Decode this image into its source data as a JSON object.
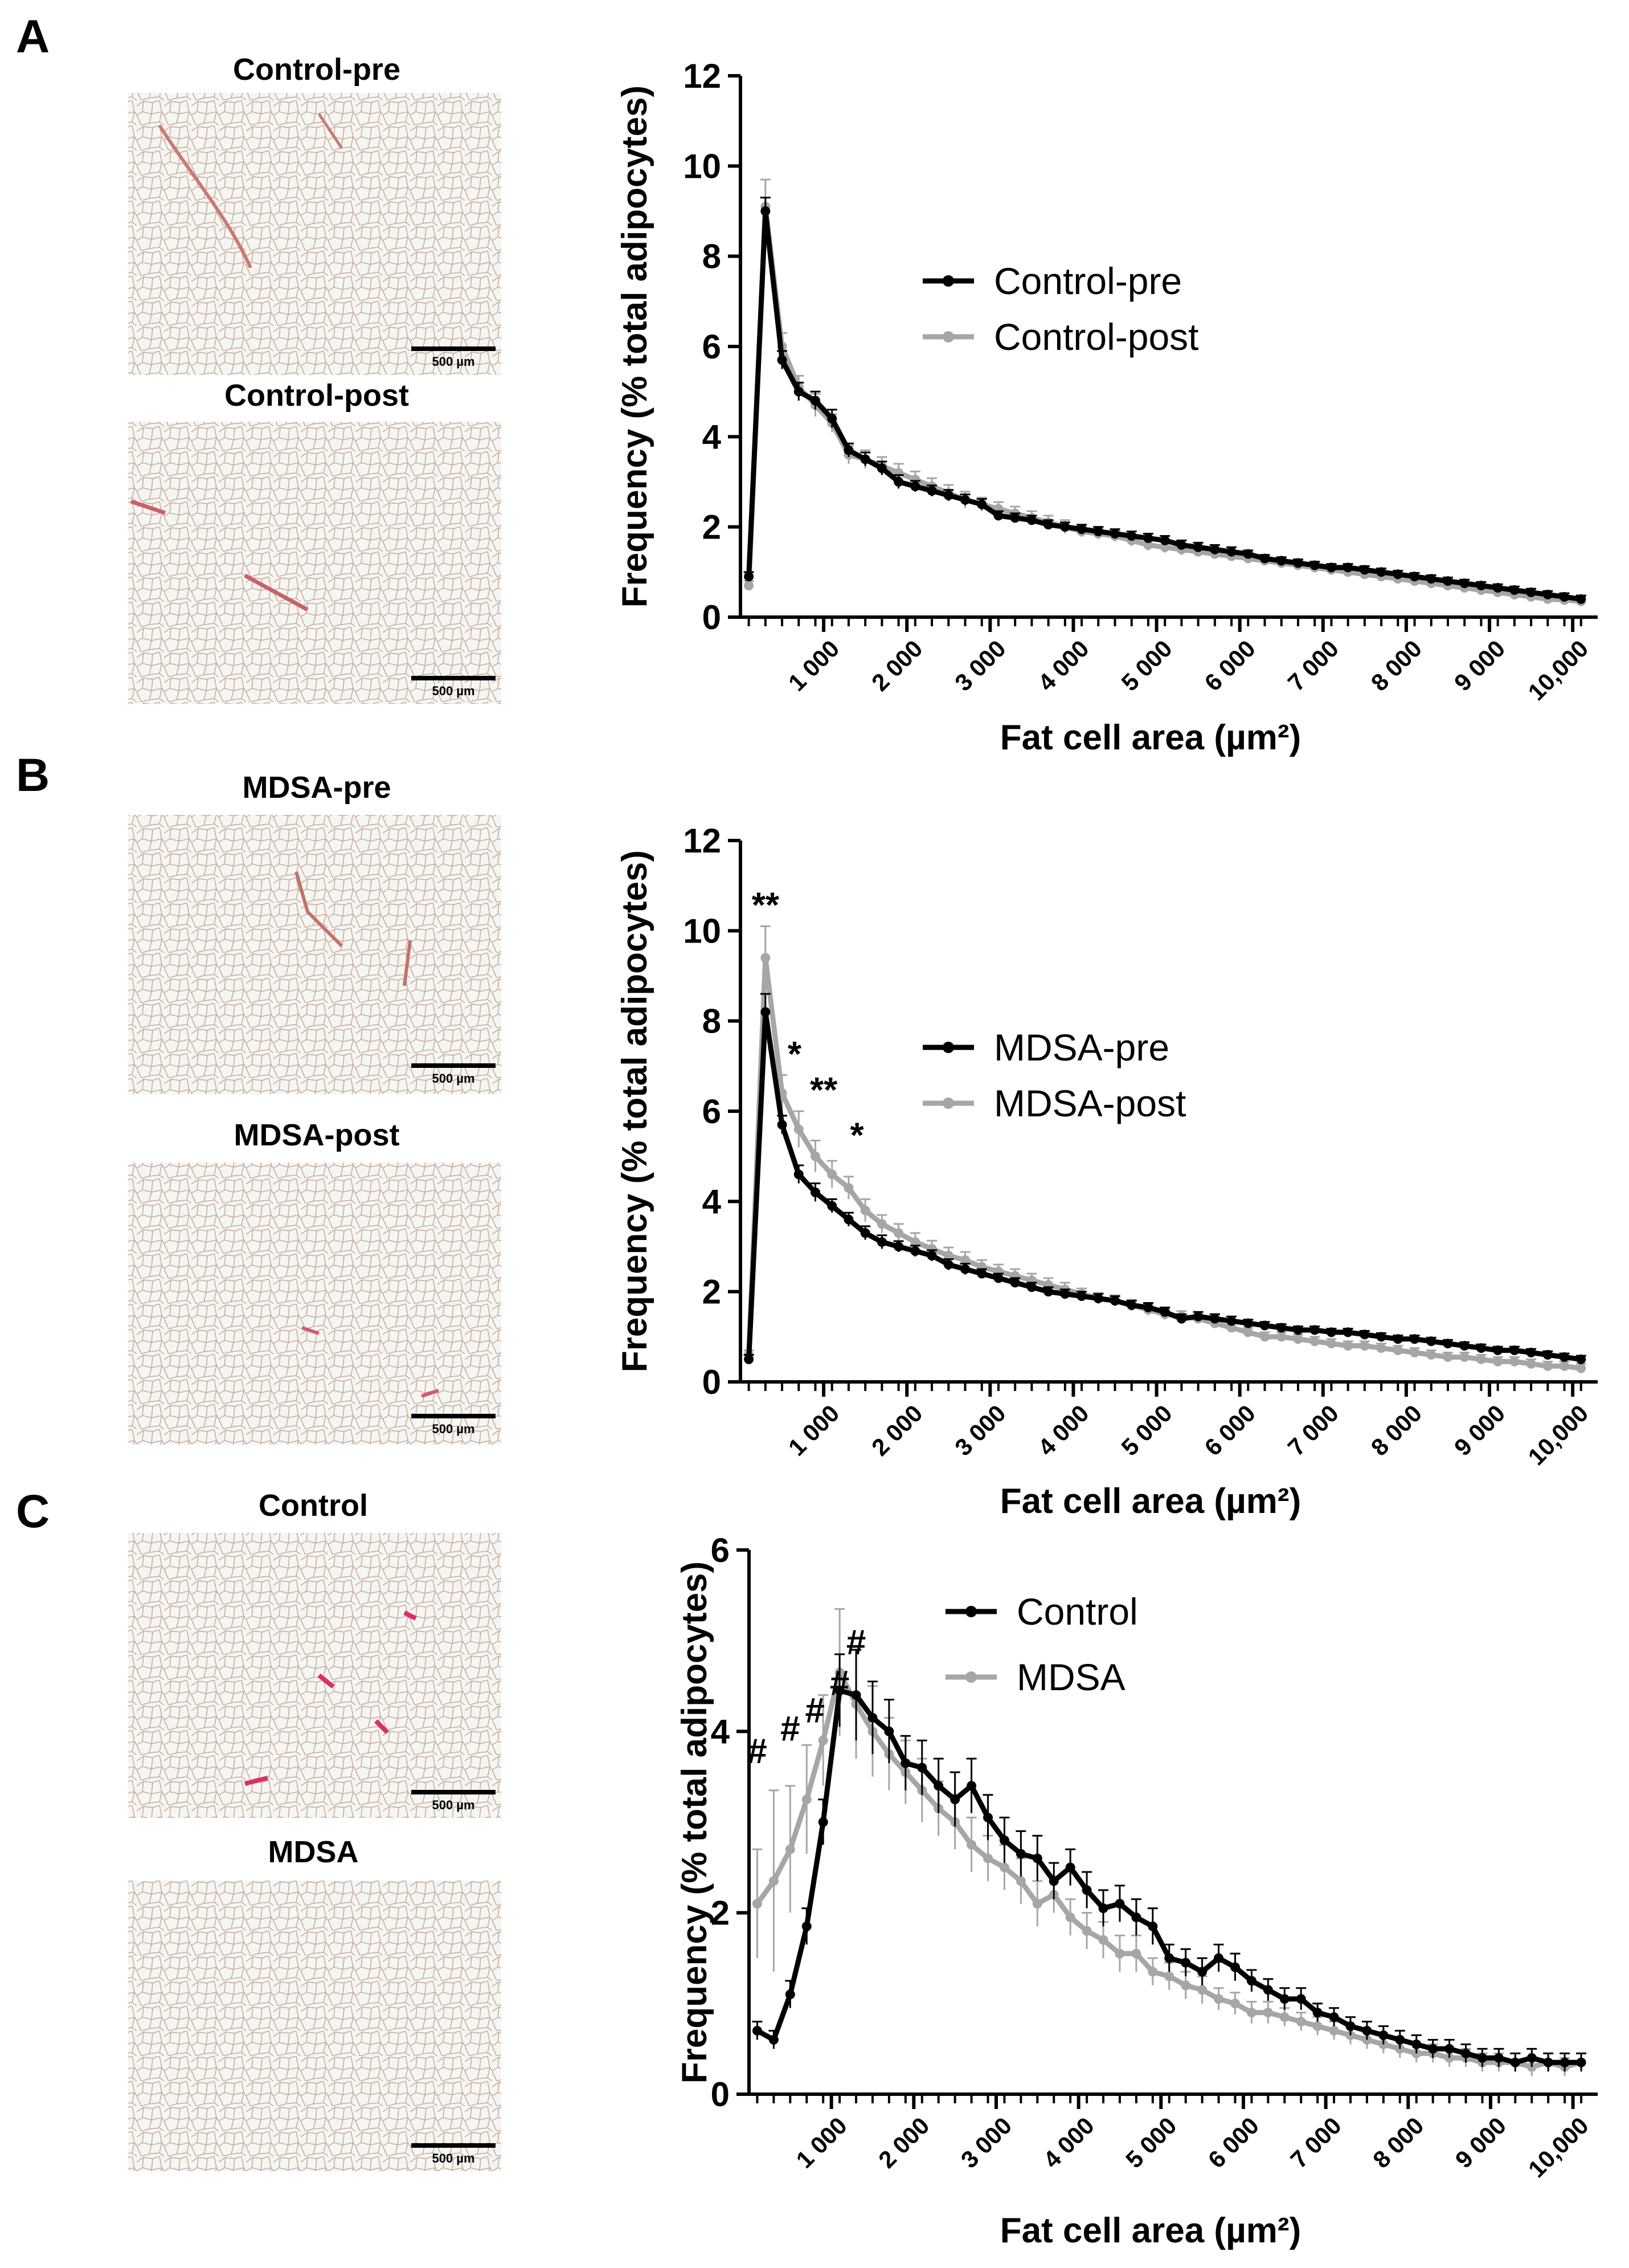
{
  "panels": [
    {
      "letter": "A",
      "images": [
        {
          "title": "Control-pre",
          "scale_label": "500 µm"
        },
        {
          "title": "Control-post",
          "scale_label": "500 µm"
        }
      ]
    },
    {
      "letter": "B",
      "images": [
        {
          "title": "MDSA-pre",
          "scale_label": "500 µm"
        },
        {
          "title": "MDSA-post",
          "scale_label": "500 µm"
        }
      ]
    },
    {
      "letter": "C",
      "images": [
        {
          "title": "Control",
          "scale_label": "500 µm"
        },
        {
          "title": "MDSA",
          "scale_label": "500 µm"
        }
      ]
    }
  ],
  "colors": {
    "series_dark": "#000000",
    "series_light": "#a6a6a6",
    "tissue_background": "#f4f5f1",
    "tissue_membrane": "#c9a89a",
    "vessel": "#c9606a"
  },
  "chart_data": [
    {
      "type": "line",
      "panel": "A",
      "xlabel": "Fat cell area (µm²)",
      "ylabel": "Frequency (% total adipocytes)",
      "xlim": [
        0,
        10300
      ],
      "ylim": [
        0,
        12
      ],
      "yticks": [
        "0",
        "2",
        "4",
        "6",
        "8",
        "10",
        "12"
      ],
      "xtick_labels": [
        "1 000",
        "2 000",
        "3 000",
        "4 000",
        "5 000",
        "6 000",
        "7 000",
        "8 000",
        "9 000",
        "10,000"
      ],
      "xtick_values": [
        1000,
        2000,
        3000,
        4000,
        5000,
        6000,
        7000,
        8000,
        9000,
        10000
      ],
      "x": [
        100,
        300,
        500,
        700,
        900,
        1100,
        1300,
        1500,
        1700,
        1900,
        2100,
        2300,
        2500,
        2700,
        2900,
        3100,
        3300,
        3500,
        3700,
        3900,
        4100,
        4300,
        4500,
        4700,
        4900,
        5100,
        5300,
        5500,
        5700,
        5900,
        6100,
        6300,
        6500,
        6700,
        6900,
        7100,
        7300,
        7500,
        7700,
        7900,
        8100,
        8300,
        8500,
        8700,
        8900,
        9100,
        9300,
        9500,
        9700,
        9900,
        10100
      ],
      "series": [
        {
          "name": "Control-pre",
          "color": "#000000",
          "values": [
            0.9,
            9.0,
            5.7,
            5.0,
            4.8,
            4.4,
            3.7,
            3.5,
            3.3,
            3.0,
            2.9,
            2.8,
            2.7,
            2.6,
            2.5,
            2.25,
            2.2,
            2.15,
            2.05,
            2.0,
            1.95,
            1.9,
            1.85,
            1.8,
            1.75,
            1.7,
            1.6,
            1.55,
            1.5,
            1.45,
            1.4,
            1.3,
            1.25,
            1.2,
            1.15,
            1.1,
            1.1,
            1.05,
            1.0,
            0.95,
            0.9,
            0.85,
            0.8,
            0.75,
            0.7,
            0.65,
            0.6,
            0.55,
            0.5,
            0.45,
            0.4
          ],
          "errors": [
            0.1,
            0.3,
            0.2,
            0.2,
            0.2,
            0.2,
            0.15,
            0.15,
            0.15,
            0.15,
            0.12,
            0.12,
            0.12,
            0.12,
            0.12,
            0.1,
            0.1,
            0.1,
            0.1,
            0.1,
            0.1,
            0.1,
            0.1,
            0.1,
            0.1,
            0.1,
            0.1,
            0.1,
            0.1,
            0.1,
            0.08,
            0.08,
            0.08,
            0.08,
            0.08,
            0.08,
            0.08,
            0.08,
            0.08,
            0.08,
            0.08,
            0.08,
            0.08,
            0.08,
            0.08,
            0.08,
            0.08,
            0.08,
            0.08,
            0.08,
            0.08
          ]
        },
        {
          "name": "Control-post",
          "color": "#a6a6a6",
          "values": [
            0.7,
            9.1,
            6.0,
            5.1,
            4.7,
            4.3,
            3.6,
            3.5,
            3.35,
            3.2,
            3.05,
            2.9,
            2.75,
            2.6,
            2.5,
            2.4,
            2.3,
            2.2,
            2.1,
            2.0,
            1.9,
            1.85,
            1.8,
            1.7,
            1.6,
            1.55,
            1.5,
            1.45,
            1.4,
            1.35,
            1.3,
            1.25,
            1.2,
            1.15,
            1.1,
            1.05,
            1.0,
            0.95,
            0.9,
            0.85,
            0.8,
            0.75,
            0.7,
            0.65,
            0.6,
            0.55,
            0.5,
            0.45,
            0.4,
            0.38,
            0.35
          ],
          "errors": [
            0.1,
            0.6,
            0.3,
            0.25,
            0.25,
            0.2,
            0.2,
            0.2,
            0.2,
            0.2,
            0.18,
            0.18,
            0.18,
            0.18,
            0.15,
            0.15,
            0.15,
            0.15,
            0.15,
            0.15,
            0.12,
            0.12,
            0.12,
            0.12,
            0.12,
            0.12,
            0.12,
            0.1,
            0.1,
            0.1,
            0.1,
            0.1,
            0.1,
            0.1,
            0.1,
            0.1,
            0.1,
            0.1,
            0.1,
            0.1,
            0.1,
            0.1,
            0.1,
            0.1,
            0.1,
            0.1,
            0.1,
            0.1,
            0.1,
            0.1,
            0.1
          ]
        }
      ],
      "legend": [
        {
          "label": "Control-pre",
          "color": "#000000"
        },
        {
          "label": "Control-post",
          "color": "#a6a6a6"
        }
      ],
      "annotations": []
    },
    {
      "type": "line",
      "panel": "B",
      "xlabel": "Fat cell area (µm²)",
      "ylabel": "Frequency (% total adipocytes)",
      "xlim": [
        0,
        10300
      ],
      "ylim": [
        0,
        12
      ],
      "yticks": [
        "0",
        "2",
        "4",
        "6",
        "8",
        "10",
        "12"
      ],
      "xtick_labels": [
        "1 000",
        "2 000",
        "3 000",
        "4 000",
        "5 000",
        "6 000",
        "7 000",
        "8 000",
        "9 000",
        "10,000"
      ],
      "xtick_values": [
        1000,
        2000,
        3000,
        4000,
        5000,
        6000,
        7000,
        8000,
        9000,
        10000
      ],
      "x": [
        100,
        300,
        500,
        700,
        900,
        1100,
        1300,
        1500,
        1700,
        1900,
        2100,
        2300,
        2500,
        2700,
        2900,
        3100,
        3300,
        3500,
        3700,
        3900,
        4100,
        4300,
        4500,
        4700,
        4900,
        5100,
        5300,
        5500,
        5700,
        5900,
        6100,
        6300,
        6500,
        6700,
        6900,
        7100,
        7300,
        7500,
        7700,
        7900,
        8100,
        8300,
        8500,
        8700,
        8900,
        9100,
        9300,
        9500,
        9700,
        9900,
        10100
      ],
      "series": [
        {
          "name": "MDSA-pre",
          "color": "#000000",
          "values": [
            0.5,
            8.2,
            5.7,
            4.6,
            4.2,
            3.9,
            3.6,
            3.3,
            3.1,
            3.0,
            2.9,
            2.8,
            2.6,
            2.5,
            2.4,
            2.3,
            2.2,
            2.1,
            2.0,
            1.95,
            1.9,
            1.85,
            1.8,
            1.7,
            1.65,
            1.55,
            1.4,
            1.45,
            1.4,
            1.35,
            1.3,
            1.25,
            1.2,
            1.15,
            1.15,
            1.1,
            1.1,
            1.05,
            1.0,
            0.95,
            0.95,
            0.9,
            0.85,
            0.8,
            0.75,
            0.7,
            0.7,
            0.65,
            0.6,
            0.55,
            0.5
          ],
          "errors": [
            0.1,
            0.4,
            0.2,
            0.2,
            0.2,
            0.15,
            0.15,
            0.15,
            0.15,
            0.12,
            0.12,
            0.12,
            0.12,
            0.12,
            0.1,
            0.1,
            0.1,
            0.1,
            0.1,
            0.1,
            0.1,
            0.1,
            0.1,
            0.1,
            0.1,
            0.1,
            0.1,
            0.1,
            0.1,
            0.1,
            0.08,
            0.08,
            0.08,
            0.08,
            0.08,
            0.08,
            0.08,
            0.08,
            0.08,
            0.08,
            0.08,
            0.08,
            0.08,
            0.08,
            0.08,
            0.08,
            0.08,
            0.08,
            0.08,
            0.08,
            0.08
          ]
        },
        {
          "name": "MDSA-post",
          "color": "#a6a6a6",
          "values": [
            0.6,
            9.4,
            6.4,
            5.6,
            5.0,
            4.6,
            4.3,
            3.8,
            3.5,
            3.3,
            3.1,
            2.95,
            2.8,
            2.7,
            2.55,
            2.45,
            2.35,
            2.25,
            2.15,
            2.05,
            1.95,
            1.85,
            1.8,
            1.7,
            1.6,
            1.5,
            1.45,
            1.4,
            1.3,
            1.2,
            1.1,
            1.0,
            1.0,
            0.95,
            0.9,
            0.85,
            0.8,
            0.8,
            0.75,
            0.7,
            0.65,
            0.6,
            0.55,
            0.55,
            0.5,
            0.45,
            0.45,
            0.4,
            0.35,
            0.35,
            0.3
          ],
          "errors": [
            0.1,
            0.7,
            0.4,
            0.4,
            0.35,
            0.3,
            0.25,
            0.25,
            0.2,
            0.2,
            0.2,
            0.18,
            0.18,
            0.18,
            0.15,
            0.15,
            0.15,
            0.15,
            0.15,
            0.15,
            0.12,
            0.12,
            0.12,
            0.12,
            0.12,
            0.12,
            0.12,
            0.1,
            0.1,
            0.1,
            0.1,
            0.1,
            0.1,
            0.1,
            0.1,
            0.1,
            0.1,
            0.1,
            0.1,
            0.1,
            0.1,
            0.1,
            0.1,
            0.1,
            0.1,
            0.1,
            0.1,
            0.1,
            0.1,
            0.1,
            0.1
          ]
        }
      ],
      "legend": [
        {
          "label": "MDSA-pre",
          "color": "#000000"
        },
        {
          "label": "MDSA-post",
          "color": "#a6a6a6"
        }
      ],
      "annotations": [
        {
          "text": "**",
          "x": 300,
          "y": 10.3
        },
        {
          "text": "*",
          "x": 650,
          "y": 7.0
        },
        {
          "text": "**",
          "x": 1000,
          "y": 6.2
        },
        {
          "text": "*",
          "x": 1400,
          "y": 5.2
        }
      ]
    },
    {
      "type": "line",
      "panel": "C",
      "xlabel": "Fat cell area (µm²)",
      "ylabel": "Frequency (% total adipocytes)",
      "xlim": [
        0,
        10300
      ],
      "ylim": [
        0,
        6
      ],
      "yticks": [
        "0",
        "2",
        "4",
        "6"
      ],
      "xtick_labels": [
        "1 000",
        "2 000",
        "3 000",
        "4 000",
        "5 000",
        "6 000",
        "7 000",
        "8 000",
        "9 000",
        "10,000"
      ],
      "xtick_values": [
        1000,
        2000,
        3000,
        4000,
        5000,
        6000,
        7000,
        8000,
        9000,
        10000
      ],
      "x": [
        100,
        300,
        500,
        700,
        900,
        1100,
        1300,
        1500,
        1700,
        1900,
        2100,
        2300,
        2500,
        2700,
        2900,
        3100,
        3300,
        3500,
        3700,
        3900,
        4100,
        4300,
        4500,
        4700,
        4900,
        5100,
        5300,
        5500,
        5700,
        5900,
        6100,
        6300,
        6500,
        6700,
        6900,
        7100,
        7300,
        7500,
        7700,
        7900,
        8100,
        8300,
        8500,
        8700,
        8900,
        9100,
        9300,
        9500,
        9700,
        9900,
        10100
      ],
      "series": [
        {
          "name": "Control",
          "color": "#000000",
          "values": [
            0.7,
            0.6,
            1.1,
            1.85,
            3.0,
            4.45,
            4.4,
            4.15,
            4.0,
            3.65,
            3.6,
            3.4,
            3.25,
            3.4,
            3.05,
            2.8,
            2.65,
            2.6,
            2.35,
            2.5,
            2.25,
            2.05,
            2.1,
            1.95,
            1.85,
            1.5,
            1.45,
            1.35,
            1.5,
            1.4,
            1.25,
            1.15,
            1.05,
            1.05,
            0.9,
            0.85,
            0.75,
            0.7,
            0.65,
            0.6,
            0.55,
            0.5,
            0.5,
            0.45,
            0.4,
            0.4,
            0.35,
            0.4,
            0.35,
            0.35,
            0.35
          ],
          "errors": [
            0.1,
            0.1,
            0.15,
            0.2,
            0.25,
            0.4,
            0.5,
            0.4,
            0.35,
            0.3,
            0.3,
            0.3,
            0.3,
            0.3,
            0.25,
            0.25,
            0.25,
            0.25,
            0.2,
            0.2,
            0.2,
            0.2,
            0.2,
            0.2,
            0.2,
            0.15,
            0.15,
            0.15,
            0.15,
            0.15,
            0.12,
            0.12,
            0.12,
            0.12,
            0.1,
            0.1,
            0.1,
            0.1,
            0.1,
            0.1,
            0.1,
            0.1,
            0.1,
            0.1,
            0.1,
            0.1,
            0.1,
            0.1,
            0.1,
            0.1,
            0.1
          ]
        },
        {
          "name": "MDSA",
          "color": "#a6a6a6",
          "values": [
            2.1,
            2.35,
            2.7,
            3.25,
            3.9,
            4.65,
            4.3,
            4.0,
            3.75,
            3.55,
            3.35,
            3.15,
            3.0,
            2.75,
            2.6,
            2.5,
            2.35,
            2.1,
            2.2,
            1.95,
            1.8,
            1.7,
            1.55,
            1.55,
            1.35,
            1.3,
            1.2,
            1.15,
            1.05,
            1.0,
            0.9,
            0.9,
            0.85,
            0.8,
            0.75,
            0.7,
            0.65,
            0.6,
            0.55,
            0.5,
            0.45,
            0.45,
            0.4,
            0.4,
            0.35,
            0.35,
            0.35,
            0.3,
            0.35,
            0.3,
            0.35
          ],
          "errors": [
            0.6,
            1.0,
            0.7,
            0.6,
            0.5,
            0.7,
            0.6,
            0.5,
            0.4,
            0.35,
            0.35,
            0.3,
            0.3,
            0.3,
            0.25,
            0.25,
            0.25,
            0.25,
            0.2,
            0.2,
            0.2,
            0.2,
            0.2,
            0.2,
            0.15,
            0.15,
            0.15,
            0.15,
            0.12,
            0.12,
            0.12,
            0.12,
            0.1,
            0.1,
            0.1,
            0.1,
            0.1,
            0.1,
            0.1,
            0.1,
            0.1,
            0.1,
            0.1,
            0.1,
            0.1,
            0.1,
            0.1,
            0.1,
            0.1,
            0.1,
            0.1
          ]
        }
      ],
      "legend": [
        {
          "label": "Control",
          "color": "#000000"
        },
        {
          "label": "MDSA",
          "color": "#a6a6a6"
        }
      ],
      "annotations": [
        {
          "text": "#",
          "x": 100,
          "y": 3.65
        },
        {
          "text": "#",
          "x": 500,
          "y": 3.9
        },
        {
          "text": "#",
          "x": 800,
          "y": 4.1
        },
        {
          "text": "#",
          "x": 1100,
          "y": 4.4
        },
        {
          "text": "#",
          "x": 1300,
          "y": 4.85
        }
      ]
    }
  ]
}
